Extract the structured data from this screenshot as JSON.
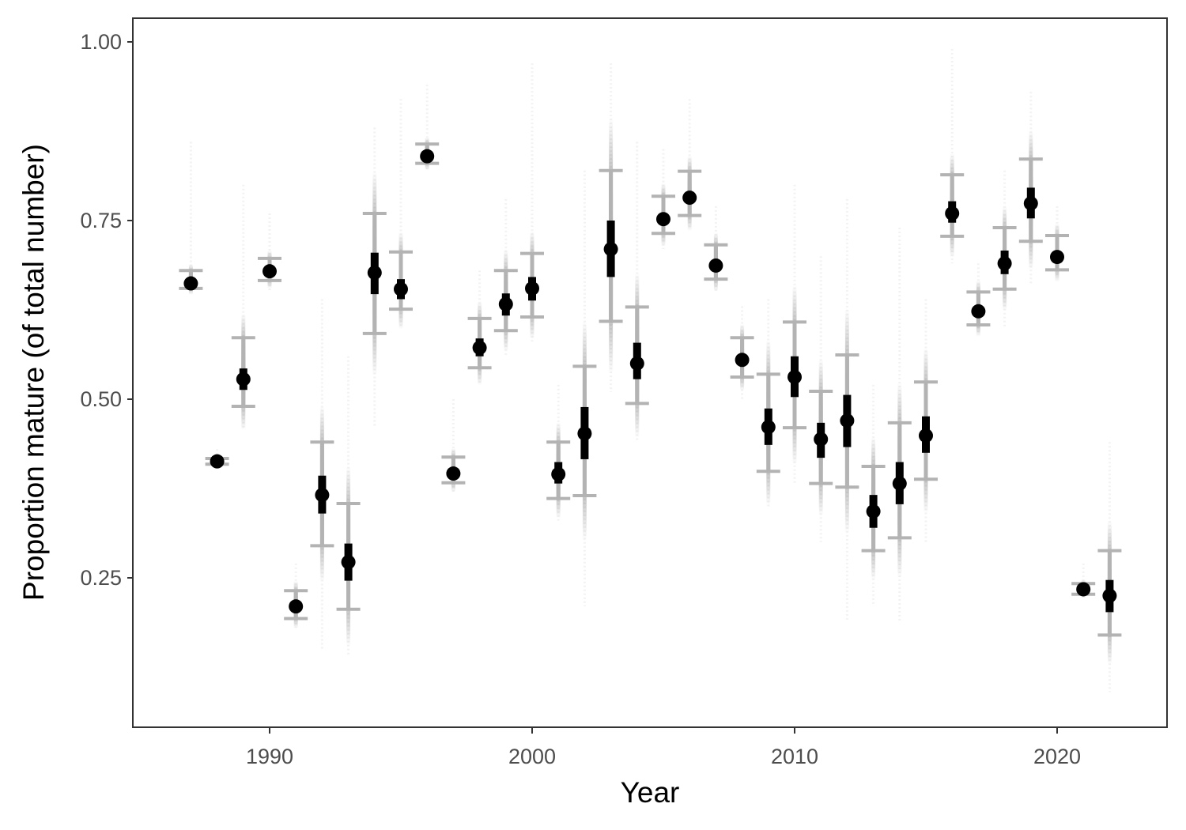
{
  "chart_data": {
    "type": "scatter",
    "subtype": "pointinterval-with-posterior-draws",
    "title": "",
    "xlabel": "Year",
    "ylabel": "Proportion mature (of total number)",
    "xlim": [
      1985,
      2024.3
    ],
    "ylim": [
      0.0425,
      1.033
    ],
    "x_ticks": [
      1990,
      2000,
      2010,
      2020
    ],
    "x_tick_labels": [
      "1990",
      "2000",
      "2010",
      "2020"
    ],
    "y_ticks": [
      0.25,
      0.5,
      0.75,
      1.0
    ],
    "y_tick_labels": [
      "0.25",
      "0.50",
      "0.75",
      "1.00"
    ],
    "grid": false,
    "legend": null,
    "colors": {
      "median_point": "#000000",
      "inner_interval": "#000000",
      "outer_interval": "#b3b3b3",
      "posterior_draws": "#000000",
      "panel_border": "#333333"
    },
    "series": [
      {
        "name": "Proportion mature",
        "x": [
          1987,
          1988,
          1989,
          1990,
          1991,
          1992,
          1993,
          1994,
          1995,
          1996,
          1997,
          1998,
          1999,
          2000,
          2001,
          2002,
          2003,
          2004,
          2005,
          2006,
          2007,
          2008,
          2009,
          2010,
          2011,
          2012,
          2013,
          2014,
          2015,
          2016,
          2017,
          2018,
          2019,
          2020,
          2021,
          2022
        ],
        "median": [
          0.662,
          0.413,
          0.528,
          0.679,
          0.21,
          0.366,
          0.272,
          0.677,
          0.654,
          0.84,
          0.396,
          0.572,
          0.633,
          0.655,
          0.395,
          0.452,
          0.71,
          0.55,
          0.752,
          0.782,
          0.687,
          0.555,
          0.461,
          0.531,
          0.444,
          0.47,
          0.343,
          0.382,
          0.449,
          0.76,
          0.623,
          0.69,
          0.774,
          0.699,
          0.234,
          0.225
        ],
        "inner_lower": [
          0.658,
          0.411,
          0.513,
          0.674,
          0.205,
          0.34,
          0.246,
          0.647,
          0.64,
          0.836,
          0.391,
          0.56,
          0.617,
          0.638,
          0.382,
          0.416,
          0.671,
          0.528,
          0.748,
          0.778,
          0.683,
          0.55,
          0.436,
          0.503,
          0.418,
          0.433,
          0.32,
          0.353,
          0.425,
          0.747,
          0.618,
          0.675,
          0.753,
          0.695,
          0.231,
          0.202
        ],
        "inner_upper": [
          0.667,
          0.415,
          0.543,
          0.684,
          0.215,
          0.393,
          0.298,
          0.705,
          0.668,
          0.845,
          0.401,
          0.585,
          0.648,
          0.671,
          0.412,
          0.489,
          0.75,
          0.579,
          0.757,
          0.787,
          0.692,
          0.56,
          0.487,
          0.56,
          0.467,
          0.506,
          0.366,
          0.412,
          0.476,
          0.777,
          0.628,
          0.708,
          0.796,
          0.704,
          0.237,
          0.247
        ],
        "outer_lower": [
          0.655,
          0.409,
          0.49,
          0.666,
          0.193,
          0.295,
          0.206,
          0.592,
          0.626,
          0.83,
          0.383,
          0.544,
          0.596,
          0.615,
          0.361,
          0.365,
          0.609,
          0.494,
          0.732,
          0.757,
          0.668,
          0.531,
          0.399,
          0.46,
          0.382,
          0.377,
          0.288,
          0.306,
          0.388,
          0.728,
          0.604,
          0.654,
          0.721,
          0.681,
          0.227,
          0.17
        ],
        "outer_upper": [
          0.68,
          0.417,
          0.586,
          0.697,
          0.232,
          0.44,
          0.354,
          0.76,
          0.706,
          0.857,
          0.419,
          0.613,
          0.68,
          0.704,
          0.44,
          0.546,
          0.82,
          0.629,
          0.784,
          0.819,
          0.716,
          0.586,
          0.535,
          0.608,
          0.511,
          0.562,
          0.406,
          0.467,
          0.524,
          0.814,
          0.65,
          0.74,
          0.836,
          0.729,
          0.242,
          0.288
        ],
        "draws_min": [
          0.65,
          0.405,
          0.46,
          0.65,
          0.18,
          0.15,
          0.14,
          0.46,
          0.6,
          0.82,
          0.37,
          0.52,
          0.56,
          0.58,
          0.33,
          0.21,
          0.51,
          0.44,
          0.71,
          0.74,
          0.65,
          0.5,
          0.35,
          0.38,
          0.3,
          0.19,
          0.21,
          0.19,
          0.3,
          0.69,
          0.59,
          0.6,
          0.66,
          0.67,
          0.22,
          0.09
        ],
        "draws_max": [
          0.86,
          0.43,
          0.8,
          0.76,
          0.27,
          0.64,
          0.56,
          0.88,
          0.92,
          0.94,
          0.5,
          0.68,
          0.78,
          0.97,
          0.52,
          0.82,
          0.97,
          0.86,
          0.85,
          0.92,
          0.77,
          0.63,
          0.64,
          0.8,
          0.7,
          0.78,
          0.52,
          0.74,
          0.64,
          0.99,
          0.69,
          0.82,
          0.93,
          0.77,
          0.27,
          0.44
        ]
      }
    ]
  }
}
